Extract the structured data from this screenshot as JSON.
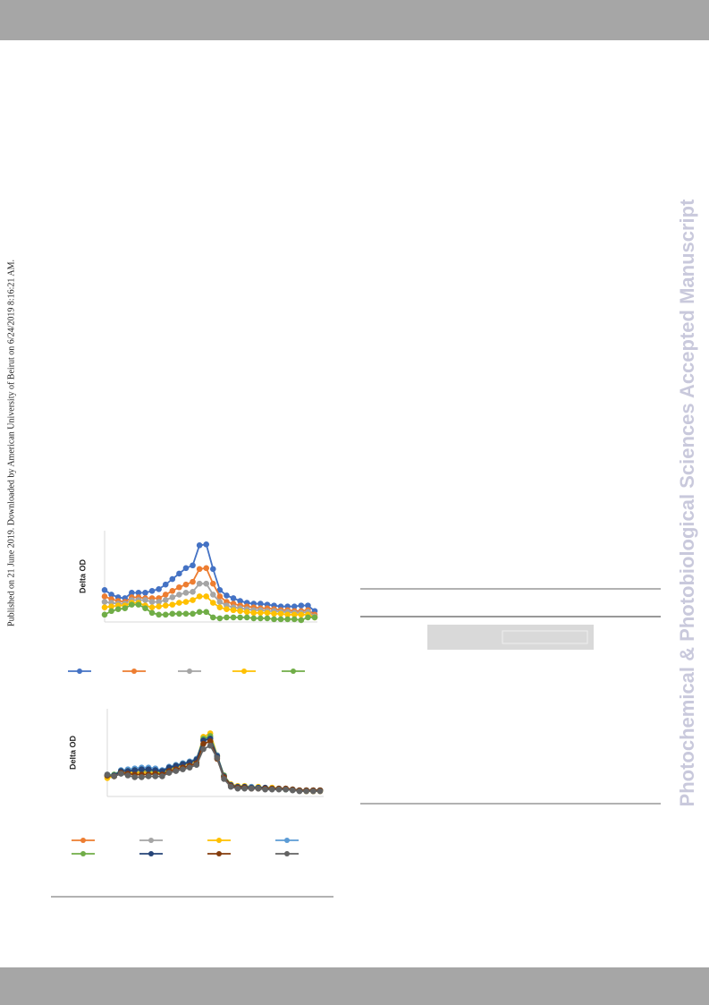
{
  "sidebar_note": "Published on 21 June 2019. Downloaded by American University of Beirut on 6/24/2019 8:16:21 AM.",
  "watermark": "Photochemical & Photobiological Sciences Accepted Manuscript",
  "chart_data": [
    {
      "type": "line",
      "ylabel": "Delta OD",
      "ylim": [
        0,
        100
      ],
      "series": [
        {
          "color": "#4472c4",
          "values": [
            35,
            30,
            27,
            26,
            32,
            32,
            32,
            34,
            36,
            41,
            47,
            53,
            59,
            62,
            84,
            85,
            58,
            35,
            29,
            26,
            23,
            21,
            20,
            20,
            19,
            18,
            17,
            17,
            17,
            18,
            18,
            12
          ]
        },
        {
          "color": "#ed7d31",
          "values": [
            28,
            25,
            23,
            22,
            27,
            27,
            26,
            26,
            26,
            30,
            34,
            38,
            41,
            44,
            58,
            59,
            42,
            28,
            22,
            20,
            18,
            17,
            16,
            15,
            15,
            14,
            13,
            13,
            12,
            12,
            13,
            8
          ]
        },
        {
          "color": "#a5a5a5",
          "values": [
            22,
            21,
            20,
            20,
            24,
            24,
            24,
            22,
            22,
            24,
            27,
            30,
            32,
            33,
            42,
            42,
            30,
            22,
            18,
            16,
            15,
            14,
            13,
            13,
            12,
            12,
            11,
            11,
            10,
            10,
            11,
            6
          ]
        },
        {
          "color": "#ffc000",
          "values": [
            16,
            17,
            18,
            18,
            21,
            21,
            18,
            16,
            17,
            18,
            19,
            21,
            22,
            24,
            28,
            28,
            21,
            16,
            14,
            13,
            12,
            11,
            10,
            10,
            10,
            9,
            9,
            8,
            8,
            8,
            8,
            5
          ]
        },
        {
          "color": "#70ad47",
          "values": [
            8,
            12,
            14,
            15,
            19,
            19,
            15,
            10,
            8,
            8,
            9,
            9,
            9,
            9,
            11,
            11,
            5,
            4,
            5,
            5,
            5,
            5,
            4,
            4,
            4,
            3,
            3,
            3,
            3,
            2,
            5,
            5
          ]
        }
      ]
    },
    {
      "type": "line",
      "ylabel": "Delta OD",
      "ylim": [
        0,
        100
      ],
      "series": [
        {
          "color": "#ed7d31",
          "values": [
            24,
            24,
            28,
            28,
            28,
            28,
            29,
            29,
            28,
            32,
            34,
            36,
            38,
            41,
            64,
            67,
            46,
            23,
            13,
            11,
            11,
            10,
            10,
            9,
            10,
            9,
            9,
            8,
            7,
            7,
            7,
            7
          ]
        },
        {
          "color": "#a5a5a5",
          "values": [
            23,
            24,
            28,
            27,
            28,
            27,
            28,
            28,
            27,
            31,
            33,
            35,
            37,
            40,
            63,
            66,
            45,
            22,
            12,
            11,
            11,
            10,
            10,
            9,
            9,
            9,
            8,
            8,
            7,
            7,
            6,
            7
          ]
        },
        {
          "color": "#ffc000",
          "values": [
            21,
            23,
            27,
            27,
            27,
            27,
            27,
            27,
            27,
            31,
            34,
            36,
            38,
            41,
            68,
            72,
            47,
            24,
            14,
            12,
            12,
            11,
            11,
            10,
            10,
            9,
            9,
            8,
            7,
            6,
            6,
            6
          ]
        },
        {
          "color": "#5b9bd5",
          "values": [
            25,
            25,
            30,
            31,
            32,
            33,
            33,
            32,
            30,
            34,
            36,
            38,
            40,
            43,
            65,
            68,
            47,
            24,
            13,
            11,
            11,
            11,
            10,
            10,
            9,
            9,
            8,
            8,
            7,
            7,
            7,
            7
          ]
        },
        {
          "color": "#70ad47",
          "values": [
            24,
            25,
            29,
            29,
            30,
            30,
            30,
            29,
            28,
            32,
            35,
            37,
            39,
            42,
            66,
            69,
            46,
            24,
            13,
            11,
            11,
            10,
            10,
            9,
            9,
            9,
            8,
            8,
            7,
            7,
            7,
            7
          ]
        },
        {
          "color": "#264478",
          "values": [
            24,
            24,
            29,
            29,
            30,
            31,
            31,
            30,
            29,
            33,
            35,
            37,
            39,
            42,
            64,
            66,
            46,
            23,
            13,
            11,
            11,
            10,
            10,
            10,
            9,
            9,
            9,
            8,
            7,
            7,
            7,
            7
          ]
        },
        {
          "color": "#843c0c",
          "values": [
            24,
            23,
            27,
            26,
            25,
            25,
            25,
            26,
            25,
            29,
            31,
            33,
            35,
            38,
            60,
            63,
            43,
            22,
            12,
            10,
            10,
            9,
            9,
            9,
            9,
            9,
            9,
            8,
            7,
            7,
            7,
            7
          ]
        },
        {
          "color": "#636363",
          "values": [
            25,
            23,
            26,
            24,
            22,
            22,
            23,
            23,
            23,
            27,
            29,
            31,
            33,
            36,
            54,
            58,
            44,
            20,
            11,
            9,
            9,
            9,
            9,
            8,
            8,
            8,
            8,
            7,
            6,
            6,
            6,
            6
          ]
        }
      ]
    }
  ]
}
